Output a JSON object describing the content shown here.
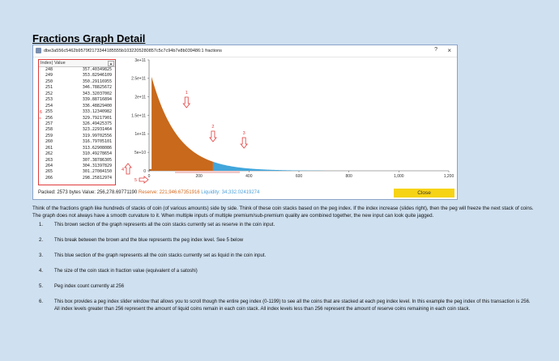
{
  "page": {
    "title": "Fractions Graph Detail"
  },
  "window": {
    "title": "dbe3a556c5462b9579f2173344185555b1032205280857c5c7c94b7e8b039486:1 fractions",
    "help_label": "?",
    "close_icon": "×"
  },
  "index_list": {
    "header_index": "Index",
    "header_value": "Value",
    "rows": [
      {
        "index": "248",
        "value": "357.40349825"
      },
      {
        "index": "249",
        "value": "353.82946109"
      },
      {
        "index": "250",
        "value": "350.29116955"
      },
      {
        "index": "251",
        "value": "346.78825672"
      },
      {
        "index": "252",
        "value": "343.32037002"
      },
      {
        "index": "253",
        "value": "339.88716894"
      },
      {
        "index": "254",
        "value": "336.48829400"
      },
      {
        "index": "255",
        "value": "333.12340982"
      },
      {
        "index": "256",
        "value": "329.79217901"
      },
      {
        "index": "257",
        "value": "326.49425375"
      },
      {
        "index": "258",
        "value": "323.22931464"
      },
      {
        "index": "259",
        "value": "319.99702556"
      },
      {
        "index": "260",
        "value": "316.79705101"
      },
      {
        "index": "261",
        "value": "313.62908086"
      },
      {
        "index": "262",
        "value": "310.49278654"
      },
      {
        "index": "263",
        "value": "307.38786305"
      },
      {
        "index": "264",
        "value": "304.31397829"
      },
      {
        "index": "265",
        "value": "301.27084150"
      },
      {
        "index": "266",
        "value": "298.25812974"
      }
    ]
  },
  "chart_data": {
    "type": "area",
    "y_ticks": [
      "0",
      "5e+10",
      "1e+11",
      "1.5e+11",
      "2e+11",
      "2.5e+11",
      "3e+11"
    ],
    "x_ticks": [
      "0",
      "200",
      "400",
      "600",
      "800",
      "1,000",
      "1,200"
    ],
    "xlim": [
      0,
      1200
    ],
    "ylim": [
      0,
      300000000000
    ],
    "peg_index": 256,
    "series": [
      {
        "color": "#c8691c",
        "x_range": [
          0,
          256
        ]
      },
      {
        "color": "#42a6db",
        "x_range": [
          256,
          700
        ]
      }
    ],
    "annotations": [
      "1",
      "2",
      "3",
      "4",
      "5"
    ]
  },
  "status": {
    "packed": "Packed: 2573 bytes",
    "value": "Value: 256,278.69771190",
    "reserve": "Reserve: 221,946.67351916",
    "liquidity": "Liquidity: 34,332.02419274"
  },
  "close_button": "Close",
  "annotation6": "6",
  "description": "Think of the fractions graph like hundreds of stacks of coin (of various amounts) side by side. Think of these coin stacks based on the peg index. If the index increase (slides right), then the peg will freeze the next stack of coins. The graph does not always have a smooth curvature to it. When multiple inputs of multiple premium/sub-premium quality are combined together, the new input can look quite jagged.",
  "notes": [
    {
      "num": "1.",
      "text": "This brown section of the graph represents all the coin stacks currently set as reserve in the coin input."
    },
    {
      "num": "2.",
      "text": "This break between the brown and the blue represents the peg index level. See 5 below"
    },
    {
      "num": "3.",
      "text": "This blue section of the graph represents all the coin stacks currently set as liquid in the coin input."
    },
    {
      "num": "4.",
      "text": "The size of the coin stack in fraction value (equivalent of a satoshi)"
    },
    {
      "num": "5.",
      "text": "Peg index count currently at 256"
    },
    {
      "num": "6.",
      "text": "This box provides a peg index slider window that allows you to scroll though the entire peg index (0-1199) to see all the coins that are stacked at each peg index level. In this example the peg index of this transaction is 256. All index levels greater than 256 represent the amount of liquid coins remain in each coin stack. All index levels less than 256 represent the amount of reserve coins remaining in each coin stack."
    }
  ]
}
